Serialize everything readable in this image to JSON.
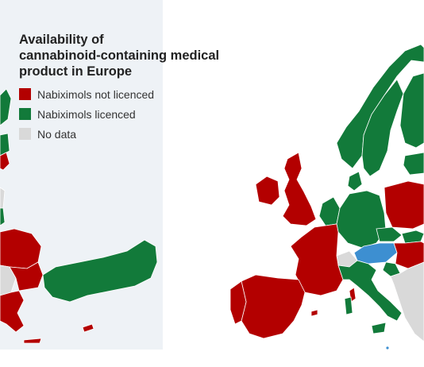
{
  "legend": {
    "title_line1": "Availability of",
    "title_line2": "cannabinoid-containing medical",
    "title_line3": "product in Europe",
    "items": [
      {
        "label": "Nabiximols not licenced",
        "color": "#b30000"
      },
      {
        "label": "Nabiximols licenced",
        "color": "#127a3a"
      },
      {
        "label": "No data",
        "color": "#d9d9d9"
      }
    ]
  },
  "colors": {
    "sea": "#ffffff",
    "inset_background": "#eef2f6",
    "not_licenced": "#b30000",
    "licenced": "#127a3a",
    "no_data": "#d9d9d9",
    "highlight": "#3d8fd1",
    "border": "#ffffff"
  },
  "regions": {
    "not_licenced": [
      "ireland",
      "united-kingdom",
      "france",
      "spain",
      "portugal",
      "poland",
      "hungary",
      "romania",
      "bulgaria",
      "greece",
      "croatia-inset"
    ],
    "licenced": [
      "norway",
      "sweden",
      "finland",
      "denmark",
      "germany",
      "netherlands",
      "belgium",
      "czechia",
      "slovakia",
      "italy",
      "slovenia",
      "baltics",
      "turkey"
    ],
    "no_data": [
      "switzerland",
      "balkans",
      "serbia",
      "moldova-ukraine"
    ],
    "highlight": [
      "austria"
    ]
  }
}
